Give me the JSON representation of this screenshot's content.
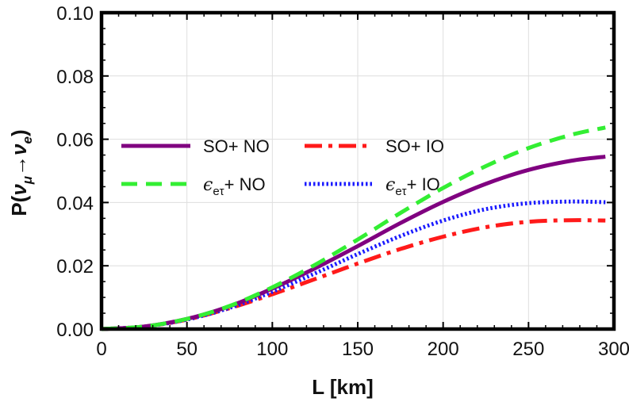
{
  "chart_data": {
    "type": "line",
    "xlabel": "L [km]",
    "ylabel": {
      "prefix": "P(",
      "nu1": "ν",
      "sub1": "μ",
      "arrow": "→",
      "nu2": "ν",
      "sub2": "e",
      "suffix": ")"
    },
    "xlim": [
      0,
      300
    ],
    "ylim": [
      0,
      0.1
    ],
    "x_ticks": [
      {
        "value": 0,
        "label": "0"
      },
      {
        "value": 50,
        "label": "50"
      },
      {
        "value": 100,
        "label": "100"
      },
      {
        "value": 150,
        "label": "150"
      },
      {
        "value": 200,
        "label": "200"
      },
      {
        "value": 250,
        "label": "250"
      },
      {
        "value": 300,
        "label": "300"
      }
    ],
    "y_ticks": [
      {
        "value": 0,
        "label": "0.00"
      },
      {
        "value": 0.02,
        "label": "0.02"
      },
      {
        "value": 0.04,
        "label": "0.04"
      },
      {
        "value": 0.06,
        "label": "0.06"
      },
      {
        "value": 0.08,
        "label": "0.08"
      },
      {
        "value": 0.1,
        "label": "0.10"
      }
    ],
    "grid": true,
    "legend_placement": "middle-left, two columns",
    "x": [
      0,
      25,
      50,
      75,
      100,
      125,
      150,
      175,
      200,
      225,
      250,
      275,
      295
    ],
    "series": [
      {
        "name": "SO+ NO",
        "key": "so_no",
        "color": "#800080",
        "style": "solid",
        "values": [
          0,
          0.0008,
          0.0032,
          0.0072,
          0.0128,
          0.0192,
          0.0262,
          0.0335,
          0.0402,
          0.0459,
          0.0503,
          0.0532,
          0.0545
        ]
      },
      {
        "name": "SO+ IO",
        "key": "so_io",
        "color": "#ff1a1a",
        "style": "dashdot",
        "values": [
          0,
          0.0008,
          0.003,
          0.0066,
          0.011,
          0.0158,
          0.0207,
          0.0253,
          0.0292,
          0.0322,
          0.0339,
          0.0344,
          0.0343
        ]
      },
      {
        "name_parts": {
          "eps": "ϵ",
          "sub": "eτ",
          "rest": "+ NO"
        },
        "key": "eps_no",
        "color": "#33ee33",
        "style": "dashed",
        "values": [
          0,
          0.0008,
          0.0032,
          0.0073,
          0.0132,
          0.0203,
          0.0283,
          0.0367,
          0.0446,
          0.0515,
          0.0572,
          0.0614,
          0.0637
        ]
      },
      {
        "name_parts": {
          "eps": "ϵ",
          "sub": "eτ",
          "rest": "+ IO"
        },
        "key": "eps_io",
        "color": "#1a1aff",
        "style": "dotted",
        "values": [
          0,
          0.0008,
          0.003,
          0.0067,
          0.0118,
          0.0176,
          0.0237,
          0.0294,
          0.0343,
          0.0379,
          0.0398,
          0.0403,
          0.0401
        ]
      }
    ]
  }
}
